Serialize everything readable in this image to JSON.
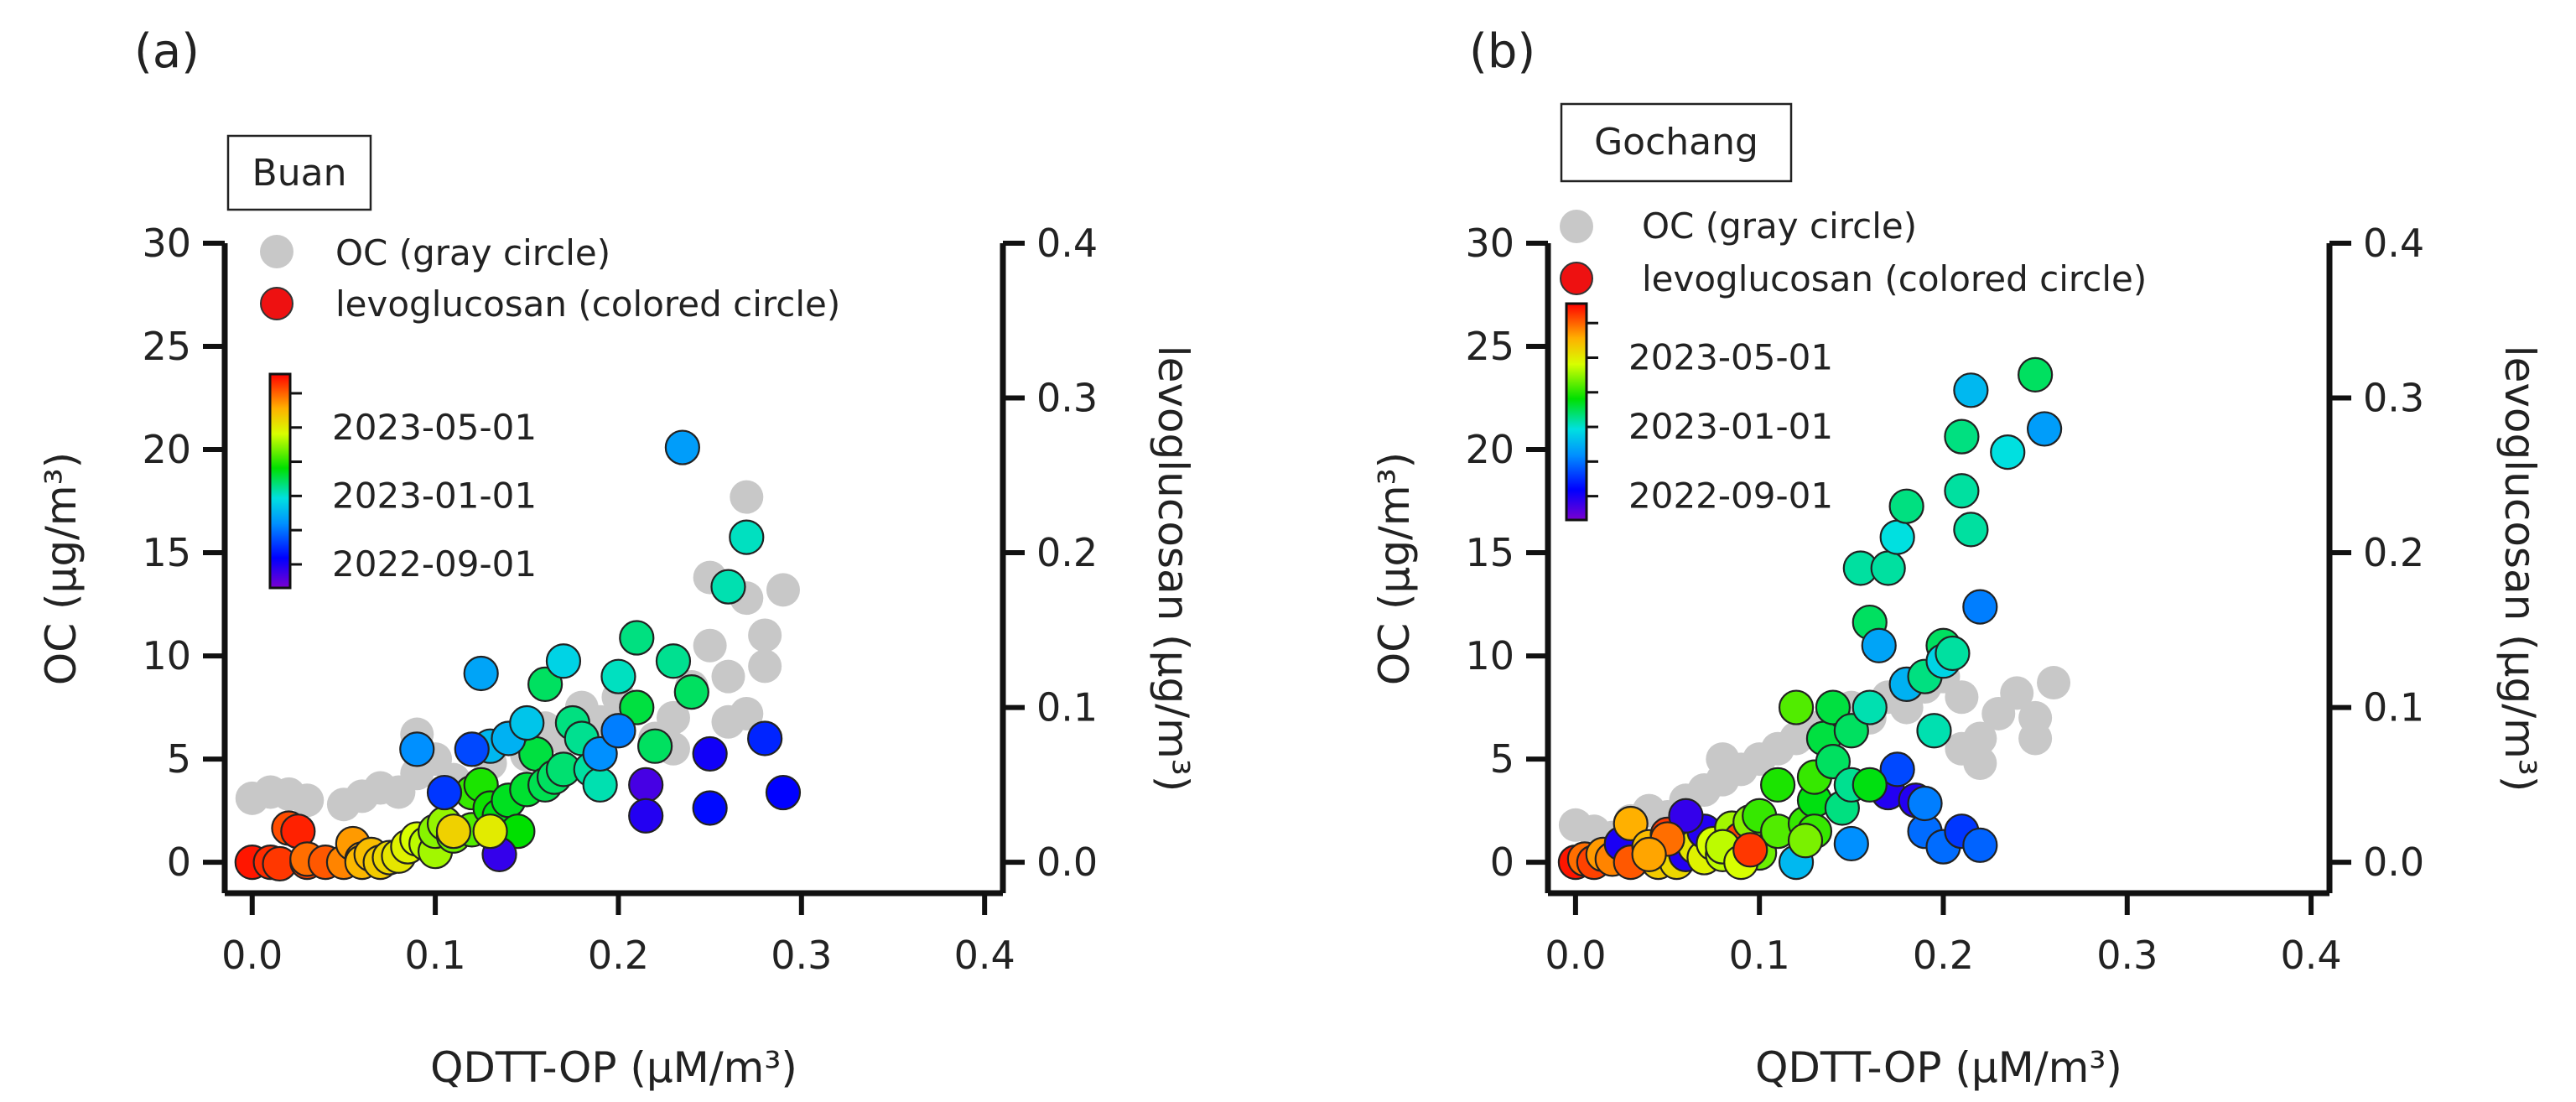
{
  "chart_data": [
    {
      "type": "scatter",
      "panel_label": "(a)",
      "site": "Buan",
      "xlabel": "QDTT-OP (µM/m³)",
      "ylabel_left": "OC (µg/m³)",
      "ylabel_right": "levoglucosan (µg/m³)",
      "xlim": [
        -0.015,
        0.41
      ],
      "ylim_left": [
        -1.5,
        30
      ],
      "ylim_right": [
        -0.02,
        0.4
      ],
      "x_ticks": [
        0.0,
        0.1,
        0.2,
        0.3,
        0.4
      ],
      "x_tick_labels": [
        "0.0",
        "0.1",
        "0.2",
        "0.3",
        "0.4"
      ],
      "y_left_ticks": [
        0,
        5,
        10,
        15,
        20,
        25,
        30
      ],
      "y_left_tick_labels": [
        "0",
        "5",
        "10",
        "15",
        "20",
        "25",
        "30"
      ],
      "y_right_ticks": [
        0.0,
        0.1,
        0.2,
        0.3,
        0.4
      ],
      "y_right_tick_labels": [
        "0.0",
        "0.1",
        "0.2",
        "0.3",
        "0.4"
      ],
      "legend": [
        {
          "label": "OC (gray circle)",
          "color": "#c8c8c8"
        },
        {
          "label": "levoglucosan (colored circle)",
          "color": "#ee1111"
        }
      ],
      "colorbar": {
        "labels": [
          "2023-05-01",
          "2023-01-01",
          "2022-09-01"
        ],
        "label_positions": [
          0.75,
          0.43,
          0.11
        ]
      },
      "oc_points": [
        [
          0.0,
          3.1
        ],
        [
          0.01,
          3.4
        ],
        [
          0.02,
          3.3
        ],
        [
          0.03,
          3.0
        ],
        [
          0.05,
          2.8
        ],
        [
          0.06,
          3.2
        ],
        [
          0.07,
          3.6
        ],
        [
          0.08,
          3.4
        ],
        [
          0.09,
          4.3
        ],
        [
          0.09,
          6.2
        ],
        [
          0.1,
          5.0
        ],
        [
          0.11,
          4.0
        ],
        [
          0.12,
          5.5
        ],
        [
          0.13,
          4.8
        ],
        [
          0.14,
          6.0
        ],
        [
          0.15,
          5.2
        ],
        [
          0.16,
          6.5
        ],
        [
          0.17,
          6.0
        ],
        [
          0.18,
          7.5
        ],
        [
          0.19,
          6.8
        ],
        [
          0.2,
          8.0
        ],
        [
          0.21,
          7.5
        ],
        [
          0.22,
          6.0
        ],
        [
          0.23,
          7.0
        ],
        [
          0.24,
          8.5
        ],
        [
          0.25,
          10.5
        ],
        [
          0.26,
          9.0
        ],
        [
          0.27,
          7.2
        ],
        [
          0.27,
          12.8
        ],
        [
          0.28,
          11.0
        ],
        [
          0.28,
          9.5
        ],
        [
          0.29,
          13.2
        ],
        [
          0.25,
          13.8
        ],
        [
          0.27,
          17.7
        ],
        [
          0.23,
          5.5
        ],
        [
          0.26,
          6.8
        ]
      ],
      "levo_points": [
        [
          0.0,
          0.0
        ],
        [
          0.01,
          0.0
        ],
        [
          0.015,
          -0.001
        ],
        [
          0.02,
          0.022
        ],
        [
          0.025,
          0.02
        ],
        [
          0.03,
          0.0
        ],
        [
          0.03,
          0.002
        ],
        [
          0.04,
          0.0
        ],
        [
          0.05,
          0.0
        ],
        [
          0.055,
          0.012
        ],
        [
          0.06,
          0.002
        ],
        [
          0.06,
          0.0
        ],
        [
          0.065,
          0.005
        ],
        [
          0.07,
          0.0
        ],
        [
          0.075,
          0.003
        ],
        [
          0.08,
          0.004
        ],
        [
          0.085,
          0.01
        ],
        [
          0.09,
          0.015
        ],
        [
          0.095,
          0.012
        ],
        [
          0.1,
          0.007
        ],
        [
          0.1,
          0.02
        ],
        [
          0.105,
          0.025
        ],
        [
          0.11,
          0.017
        ],
        [
          0.12,
          0.021
        ],
        [
          0.12,
          0.045
        ],
        [
          0.125,
          0.05
        ],
        [
          0.13,
          0.035
        ],
        [
          0.135,
          0.03
        ],
        [
          0.14,
          0.04
        ],
        [
          0.145,
          0.02
        ],
        [
          0.15,
          0.047
        ],
        [
          0.155,
          0.07
        ],
        [
          0.16,
          0.05
        ],
        [
          0.16,
          0.115
        ],
        [
          0.165,
          0.055
        ],
        [
          0.17,
          0.06
        ],
        [
          0.175,
          0.09
        ],
        [
          0.18,
          0.08
        ],
        [
          0.185,
          0.06
        ],
        [
          0.19,
          0.05
        ],
        [
          0.2,
          0.12
        ],
        [
          0.21,
          0.1
        ],
        [
          0.21,
          0.145
        ],
        [
          0.215,
          0.05
        ],
        [
          0.22,
          0.075
        ],
        [
          0.23,
          0.13
        ],
        [
          0.24,
          0.11
        ],
        [
          0.26,
          0.178
        ],
        [
          0.27,
          0.21
        ],
        [
          0.235,
          0.268
        ],
        [
          0.09,
          0.073
        ],
        [
          0.125,
          0.122
        ],
        [
          0.13,
          0.075
        ],
        [
          0.14,
          0.08
        ],
        [
          0.15,
          0.09
        ],
        [
          0.17,
          0.13
        ],
        [
          0.19,
          0.07
        ],
        [
          0.2,
          0.085
        ],
        [
          0.215,
          0.03
        ],
        [
          0.25,
          0.035
        ],
        [
          0.25,
          0.07
        ],
        [
          0.28,
          0.08
        ],
        [
          0.29,
          0.045
        ],
        [
          0.135,
          0.005
        ],
        [
          0.105,
          0.045
        ],
        [
          0.12,
          0.073
        ],
        [
          0.11,
          0.02
        ],
        [
          0.13,
          0.02
        ]
      ],
      "levo_dates": [
        0.98,
        0.96,
        0.95,
        0.93,
        0.97,
        0.94,
        0.9,
        0.92,
        0.88,
        0.86,
        0.85,
        0.83,
        0.82,
        0.8,
        0.78,
        0.76,
        0.74,
        0.72,
        0.7,
        0.68,
        0.66,
        0.67,
        0.64,
        0.62,
        0.6,
        0.58,
        0.57,
        0.55,
        0.54,
        0.56,
        0.53,
        0.52,
        0.51,
        0.5,
        0.5,
        0.49,
        0.48,
        0.47,
        0.46,
        0.45,
        0.44,
        0.52,
        0.48,
        0.06,
        0.5,
        0.47,
        0.5,
        0.45,
        0.44,
        0.32,
        0.3,
        0.33,
        0.36,
        0.35,
        0.38,
        0.4,
        0.3,
        0.28,
        0.1,
        0.15,
        0.12,
        0.18,
        0.14,
        0.08,
        0.2,
        0.22,
        0.79,
        0.75
      ]
    },
    {
      "type": "scatter",
      "panel_label": "(b)",
      "site": "Gochang",
      "xlabel": "QDTT-OP (µM/m³)",
      "ylabel_left": "OC (µg/m³)",
      "ylabel_right": "levoglucosan (µg/m³)",
      "xlim": [
        -0.015,
        0.41
      ],
      "ylim_left": [
        -1.5,
        30
      ],
      "ylim_right": [
        -0.02,
        0.4
      ],
      "x_ticks": [
        0.0,
        0.1,
        0.2,
        0.3,
        0.4
      ],
      "x_tick_labels": [
        "0.0",
        "0.1",
        "0.2",
        "0.3",
        "0.4"
      ],
      "y_left_ticks": [
        0,
        5,
        10,
        15,
        20,
        25,
        30
      ],
      "y_left_tick_labels": [
        "0",
        "5",
        "10",
        "15",
        "20",
        "25",
        "30"
      ],
      "y_right_ticks": [
        0.0,
        0.1,
        0.2,
        0.3,
        0.4
      ],
      "y_right_tick_labels": [
        "0.0",
        "0.1",
        "0.2",
        "0.3",
        "0.4"
      ],
      "legend": [
        {
          "label": "OC (gray circle)",
          "color": "#c8c8c8"
        },
        {
          "label": "levoglucosan (colored circle)",
          "color": "#ee1111"
        }
      ],
      "colorbar": {
        "labels": [
          "2023-05-01",
          "2023-01-01",
          "2022-09-01"
        ],
        "label_positions": [
          0.75,
          0.43,
          0.11
        ]
      },
      "oc_points": [
        [
          0.0,
          1.8
        ],
        [
          0.01,
          1.5
        ],
        [
          0.02,
          1.2
        ],
        [
          0.03,
          2.0
        ],
        [
          0.04,
          2.5
        ],
        [
          0.05,
          2.2
        ],
        [
          0.06,
          3.0
        ],
        [
          0.07,
          3.5
        ],
        [
          0.08,
          4.0
        ],
        [
          0.08,
          5.0
        ],
        [
          0.09,
          4.5
        ],
        [
          0.1,
          5.0
        ],
        [
          0.11,
          5.5
        ],
        [
          0.12,
          6.0
        ],
        [
          0.13,
          6.5
        ],
        [
          0.14,
          7.0
        ],
        [
          0.15,
          7.5
        ],
        [
          0.16,
          7.0
        ],
        [
          0.17,
          8.0
        ],
        [
          0.18,
          7.5
        ],
        [
          0.19,
          8.5
        ],
        [
          0.2,
          9.0
        ],
        [
          0.21,
          8.0
        ],
        [
          0.21,
          5.5
        ],
        [
          0.22,
          6.0
        ],
        [
          0.22,
          4.8
        ],
        [
          0.23,
          7.2
        ],
        [
          0.24,
          8.2
        ],
        [
          0.25,
          7.0
        ],
        [
          0.25,
          6.0
        ],
        [
          0.26,
          8.7
        ]
      ],
      "levo_points": [
        [
          0.0,
          0.0
        ],
        [
          0.005,
          0.002
        ],
        [
          0.01,
          0.0
        ],
        [
          0.015,
          0.005
        ],
        [
          0.02,
          0.002
        ],
        [
          0.025,
          0.012
        ],
        [
          0.03,
          0.0
        ],
        [
          0.03,
          0.025
        ],
        [
          0.04,
          0.01
        ],
        [
          0.045,
          0.0
        ],
        [
          0.05,
          0.018
        ],
        [
          0.055,
          0.0
        ],
        [
          0.06,
          0.005
        ],
        [
          0.065,
          0.01
        ],
        [
          0.07,
          0.003
        ],
        [
          0.07,
          0.02
        ],
        [
          0.075,
          0.012
        ],
        [
          0.08,
          0.005
        ],
        [
          0.085,
          0.022
        ],
        [
          0.09,
          0.015
        ],
        [
          0.095,
          0.026
        ],
        [
          0.1,
          0.006
        ],
        [
          0.1,
          0.03
        ],
        [
          0.11,
          0.02
        ],
        [
          0.11,
          0.05
        ],
        [
          0.12,
          0.0
        ],
        [
          0.12,
          0.1
        ],
        [
          0.125,
          0.025
        ],
        [
          0.13,
          0.04
        ],
        [
          0.13,
          0.055
        ],
        [
          0.135,
          0.08
        ],
        [
          0.14,
          0.065
        ],
        [
          0.14,
          0.1
        ],
        [
          0.145,
          0.035
        ],
        [
          0.15,
          0.05
        ],
        [
          0.15,
          0.085
        ],
        [
          0.155,
          0.19
        ],
        [
          0.16,
          0.1
        ],
        [
          0.16,
          0.155
        ],
        [
          0.165,
          0.14
        ],
        [
          0.17,
          0.045
        ],
        [
          0.17,
          0.19
        ],
        [
          0.175,
          0.21
        ],
        [
          0.18,
          0.23
        ],
        [
          0.18,
          0.115
        ],
        [
          0.185,
          0.04
        ],
        [
          0.19,
          0.12
        ],
        [
          0.19,
          0.02
        ],
        [
          0.195,
          0.085
        ],
        [
          0.2,
          0.14
        ],
        [
          0.2,
          0.13
        ],
        [
          0.205,
          0.135
        ],
        [
          0.21,
          0.24
        ],
        [
          0.21,
          0.275
        ],
        [
          0.215,
          0.305
        ],
        [
          0.215,
          0.215
        ],
        [
          0.22,
          0.165
        ],
        [
          0.235,
          0.265
        ],
        [
          0.25,
          0.315
        ],
        [
          0.255,
          0.28
        ],
        [
          0.2,
          0.01
        ],
        [
          0.21,
          0.02
        ],
        [
          0.22,
          0.011
        ],
        [
          0.19,
          0.038
        ],
        [
          0.175,
          0.06
        ],
        [
          0.15,
          0.012
        ],
        [
          0.16,
          0.05
        ],
        [
          0.13,
          0.02
        ],
        [
          0.125,
          0.014
        ],
        [
          0.08,
          0.01
        ],
        [
          0.09,
          0.0
        ],
        [
          0.06,
          0.03
        ],
        [
          0.05,
          0.015
        ],
        [
          0.04,
          0.005
        ],
        [
          0.095,
          0.008
        ]
      ],
      "levo_dates": [
        0.98,
        0.9,
        0.94,
        0.86,
        0.88,
        0.11,
        0.92,
        0.84,
        0.82,
        0.8,
        0.95,
        0.78,
        0.1,
        0.76,
        0.74,
        0.1,
        0.72,
        0.7,
        0.68,
        0.94,
        0.66,
        0.64,
        0.6,
        0.62,
        0.58,
        0.36,
        0.62,
        0.6,
        0.55,
        0.6,
        0.52,
        0.5,
        0.52,
        0.48,
        0.47,
        0.5,
        0.46,
        0.45,
        0.5,
        0.33,
        0.1,
        0.46,
        0.42,
        0.48,
        0.35,
        0.1,
        0.48,
        0.26,
        0.45,
        0.5,
        0.4,
        0.46,
        0.46,
        0.48,
        0.36,
        0.46,
        0.28,
        0.42,
        0.5,
        0.32,
        0.26,
        0.2,
        0.25,
        0.28,
        0.22,
        0.3,
        0.55,
        0.6,
        0.65,
        0.7,
        0.72,
        0.08,
        0.9,
        0.85,
        0.95
      ]
    }
  ]
}
